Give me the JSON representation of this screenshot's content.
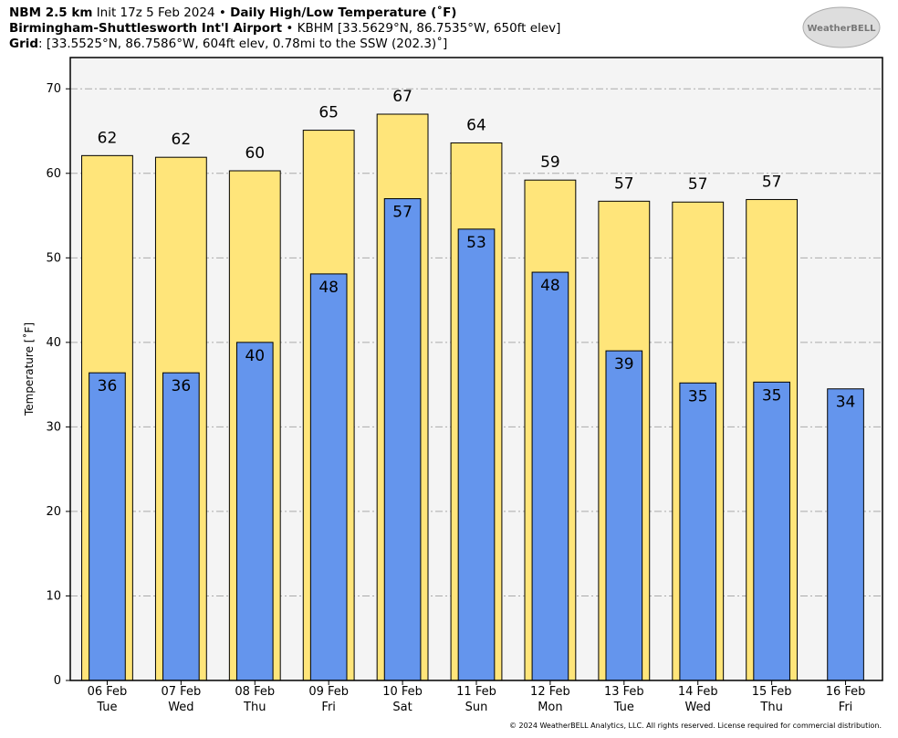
{
  "chart_data": {
    "type": "bar",
    "header": {
      "line1": [
        "NBM 2.5 km",
        "Init 17z 5 Feb 2024",
        "•",
        "Daily High/Low Temperature (˚F)"
      ],
      "line2": [
        "Birmingham-Shuttlesworth Int'l Airport",
        "• KBHM [33.5629°N, 86.7535°W, 650ft elev]"
      ],
      "line3": [
        "Grid",
        ": [33.5525°N, 86.7586°W, 604ft elev, 0.78mi to the SSW (202.3)˚]"
      ]
    },
    "logo": "WeatherBELL",
    "ylabel": "Temperature [˚F]",
    "footer": "© 2024 WeatherBELL Analytics, LLC. All rights reserved. License required for commercial distribution.",
    "categories": [
      "06 Feb",
      "07 Feb",
      "08 Feb",
      "09 Feb",
      "10 Feb",
      "11 Feb",
      "12 Feb",
      "13 Feb",
      "14 Feb",
      "15 Feb",
      "16 Feb"
    ],
    "days": [
      "Tue",
      "Wed",
      "Thu",
      "Fri",
      "Sat",
      "Sun",
      "Mon",
      "Tue",
      "Wed",
      "Thu",
      "Fri"
    ],
    "series": [
      {
        "name": "High",
        "color": "#ffe57a",
        "values": [
          62.1,
          61.9,
          60.3,
          65.1,
          67.0,
          63.6,
          59.2,
          56.7,
          56.6,
          56.9,
          null
        ],
        "value_labels": [
          "62",
          "62",
          "60",
          "65",
          "67",
          "64",
          "59",
          "57",
          "57",
          "57",
          null
        ]
      },
      {
        "name": "Low",
        "color": "#6495ed",
        "values": [
          36.4,
          36.4,
          40.0,
          48.1,
          57.0,
          53.4,
          48.3,
          39.0,
          35.2,
          35.3,
          34.5
        ],
        "value_labels": [
          "36",
          "36",
          "40",
          "48",
          "57",
          "53",
          "48",
          "39",
          "35",
          "35",
          "34"
        ]
      }
    ],
    "ylim": [
      0,
      73.7
    ],
    "yticks": [
      0,
      10,
      20,
      30,
      40,
      50,
      60,
      70
    ],
    "grid": true
  }
}
